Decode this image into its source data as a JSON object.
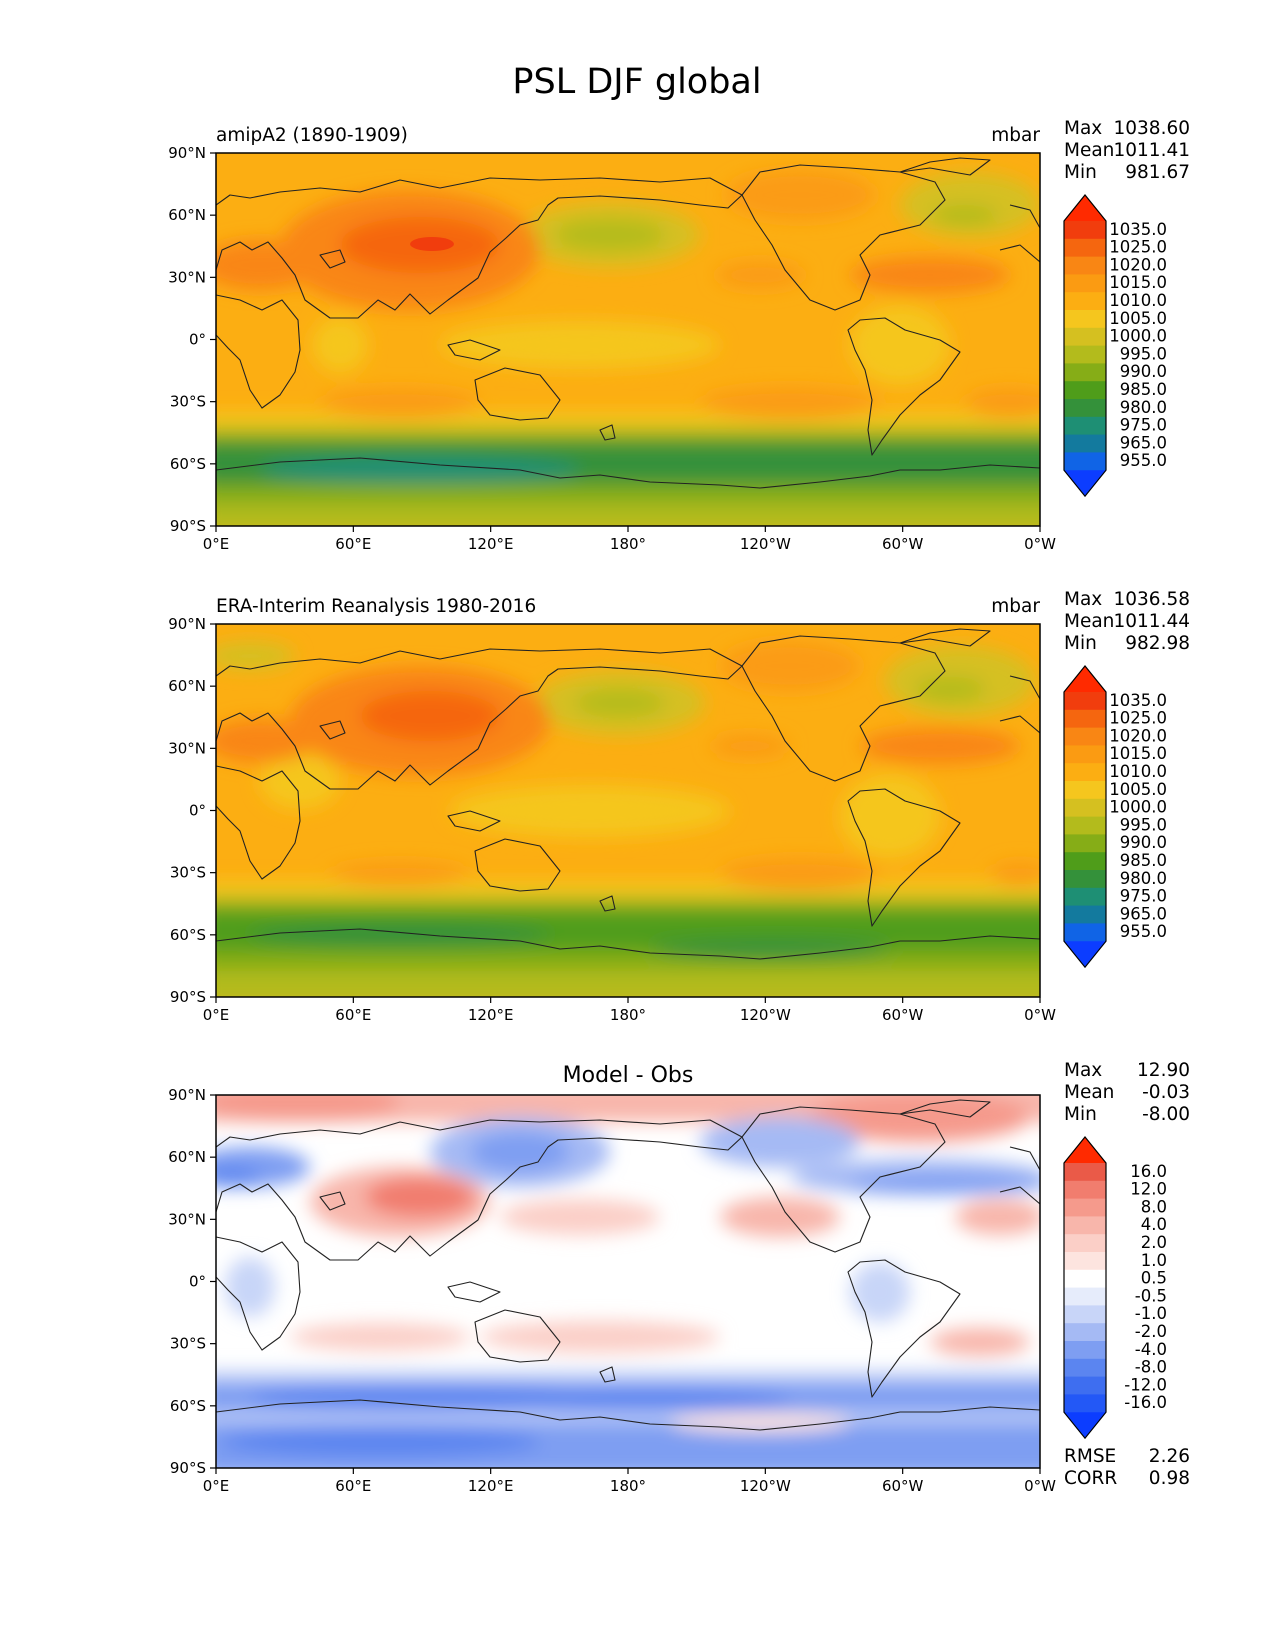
{
  "figure": {
    "title": "PSL DJF global"
  },
  "axes": {
    "lat_ticks": [
      "90°N",
      "60°N",
      "30°N",
      "0°",
      "30°S",
      "60°S",
      "90°S"
    ],
    "lon_ticks": [
      "0°E",
      "60°E",
      "120°E",
      "180°",
      "120°W",
      "60°W",
      "0°W"
    ]
  },
  "colors": {
    "psl_levels": [
      "#0c3dff",
      "#1064e6",
      "#137a9e",
      "#1e8f74",
      "#34913a",
      "#4f9d1a",
      "#86ad17",
      "#b3bb1c",
      "#d5c020",
      "#f5c61e",
      "#fcae12",
      "#fb9b12",
      "#f98614",
      "#f5660f",
      "#f13d0d",
      "#ff2a00"
    ],
    "diff_levels": [
      "#0c3dff",
      "#2358f6",
      "#3e6ef0",
      "#5b85f0",
      "#7e9ef2",
      "#a5baf4",
      "#c8d5f8",
      "#e6ecfb",
      "#ffffff",
      "#fde4df",
      "#fbcfc7",
      "#f8b6ab",
      "#f59a8c",
      "#f17d6e",
      "#ea5a48",
      "#ff2a00"
    ]
  },
  "panels": [
    {
      "id": "model",
      "label_left": "amipA2 (1890-1909)",
      "label_right": "mbar",
      "stats": [
        {
          "label": "Max",
          "value": "1038.60"
        },
        {
          "label": "Mean",
          "value": "1011.41"
        },
        {
          "label": "Min",
          "value": "981.67"
        }
      ],
      "colorbar_labels": [
        "1035.0",
        "1025.0",
        "1020.0",
        "1015.0",
        "1010.0",
        "1005.0",
        "1000.0",
        "995.0",
        "990.0",
        "985.0",
        "980.0",
        "975.0",
        "965.0",
        "955.0"
      ]
    },
    {
      "id": "obs",
      "label_left": "ERA-Interim Reanalysis 1980-2016",
      "label_right": "mbar",
      "stats": [
        {
          "label": "Max",
          "value": "1036.58"
        },
        {
          "label": "Mean",
          "value": "1011.44"
        },
        {
          "label": "Min",
          "value": "982.98"
        }
      ],
      "colorbar_labels": [
        "1035.0",
        "1025.0",
        "1020.0",
        "1015.0",
        "1010.0",
        "1005.0",
        "1000.0",
        "995.0",
        "990.0",
        "985.0",
        "980.0",
        "975.0",
        "965.0",
        "955.0"
      ]
    },
    {
      "id": "diff",
      "title": "Model - Obs",
      "stats": [
        {
          "label": "Max",
          "value": "12.90"
        },
        {
          "label": "Mean",
          "value": "-0.03"
        },
        {
          "label": "Min",
          "value": "-8.00"
        }
      ],
      "colorbar_labels": [
        "16.0",
        "12.0",
        "8.0",
        "4.0",
        "2.0",
        "1.0",
        "0.5",
        "-0.5",
        "-1.0",
        "-2.0",
        "-4.0",
        "-8.0",
        "-12.0",
        "-16.0"
      ],
      "metrics": [
        {
          "label": "RMSE",
          "value": "2.26"
        },
        {
          "label": "CORR",
          "value": "0.98"
        }
      ]
    }
  ]
}
